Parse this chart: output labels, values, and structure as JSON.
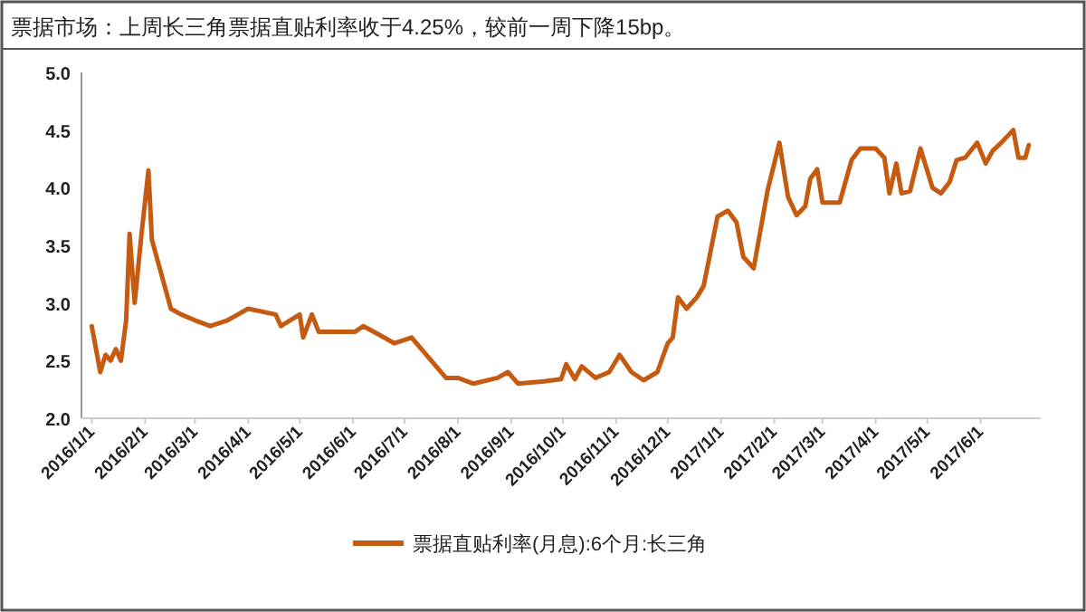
{
  "chart_data": {
    "type": "line",
    "title": "票据市场：上周长三角票据直贴利率收于4.25%，较前一周下降15bp。",
    "xlim": [
      "2015-12-26",
      "2017-07-06"
    ],
    "xticks": [
      {
        "value": "2016-01-01",
        "label": "2016/1/1"
      },
      {
        "value": "2016-02-01",
        "label": "2016/2/1"
      },
      {
        "value": "2016-03-01",
        "label": "2016/3/1"
      },
      {
        "value": "2016-04-01",
        "label": "2016/4/1"
      },
      {
        "value": "2016-05-01",
        "label": "2016/5/1"
      },
      {
        "value": "2016-06-01",
        "label": "2016/6/1"
      },
      {
        "value": "2016-07-01",
        "label": "2016/7/1"
      },
      {
        "value": "2016-08-01",
        "label": "2016/8/1"
      },
      {
        "value": "2016-09-01",
        "label": "2016/9/1"
      },
      {
        "value": "2016-10-01",
        "label": "2016/10/1"
      },
      {
        "value": "2016-11-01",
        "label": "2016/11/1"
      },
      {
        "value": "2016-12-01",
        "label": "2016/12/1"
      },
      {
        "value": "2017-01-01",
        "label": "2017/1/1"
      },
      {
        "value": "2017-02-01",
        "label": "2017/2/1"
      },
      {
        "value": "2017-03-01",
        "label": "2017/3/1"
      },
      {
        "value": "2017-04-01",
        "label": "2017/4/1"
      },
      {
        "value": "2017-05-01",
        "label": "2017/5/1"
      },
      {
        "value": "2017-06-01",
        "label": "2017/6/1"
      }
    ],
    "ylim": [
      2.0,
      5.0
    ],
    "yticks": [
      {
        "value": 2.0,
        "label": "2.0"
      },
      {
        "value": 2.5,
        "label": "2.5"
      },
      {
        "value": 3.0,
        "label": "3.0"
      },
      {
        "value": 3.5,
        "label": "3.5"
      },
      {
        "value": 4.0,
        "label": "4.0"
      },
      {
        "value": 4.5,
        "label": "4.5"
      },
      {
        "value": 5.0,
        "label": "5.0"
      }
    ],
    "grid": false,
    "legend": "bottom",
    "marker": "none",
    "line_style": "solid",
    "series": [
      {
        "name": "票据直贴利率(月息):6个月:长三角",
        "color": "#c55a11",
        "x": [
          "2016-01-01",
          "2016-01-06",
          "2016-01-09",
          "2016-01-12",
          "2016-01-15",
          "2016-01-18",
          "2016-01-21",
          "2016-01-23",
          "2016-01-26",
          "2016-01-30",
          "2016-02-03",
          "2016-02-05",
          "2016-02-16",
          "2016-02-22",
          "2016-03-01",
          "2016-03-10",
          "2016-03-20",
          "2016-04-01",
          "2016-04-17",
          "2016-04-20",
          "2016-05-01",
          "2016-05-03",
          "2016-05-08",
          "2016-05-12",
          "2016-06-02",
          "2016-06-07",
          "2016-06-19",
          "2016-06-25",
          "2016-07-05",
          "2016-07-25",
          "2016-08-01",
          "2016-08-10",
          "2016-08-24",
          "2016-08-30",
          "2016-09-05",
          "2016-09-20",
          "2016-09-30",
          "2016-10-03",
          "2016-10-08",
          "2016-10-12",
          "2016-10-20",
          "2016-10-28",
          "2016-11-03",
          "2016-11-10",
          "2016-11-17",
          "2016-11-25",
          "2016-12-01",
          "2016-12-04",
          "2016-12-07",
          "2016-12-12",
          "2016-12-18",
          "2016-12-22",
          "2016-12-30",
          "2017-01-05",
          "2017-01-10",
          "2017-01-14",
          "2017-01-20",
          "2017-01-28",
          "2017-02-04",
          "2017-02-09",
          "2017-02-14",
          "2017-02-19",
          "2017-02-22",
          "2017-02-26",
          "2017-03-01",
          "2017-03-11",
          "2017-03-18",
          "2017-03-23",
          "2017-04-01",
          "2017-04-06",
          "2017-04-09",
          "2017-04-13",
          "2017-04-16",
          "2017-04-21",
          "2017-04-27",
          "2017-05-04",
          "2017-05-09",
          "2017-05-14",
          "2017-05-18",
          "2017-05-23",
          "2017-05-30",
          "2017-06-04",
          "2017-06-08",
          "2017-06-13",
          "2017-06-20",
          "2017-06-23",
          "2017-06-27",
          "2017-06-29"
        ],
        "values": [
          2.8,
          2.4,
          2.55,
          2.5,
          2.6,
          2.5,
          2.85,
          3.6,
          3.0,
          3.6,
          4.15,
          3.55,
          2.95,
          2.9,
          2.85,
          2.8,
          2.85,
          2.95,
          2.9,
          2.8,
          2.9,
          2.7,
          2.9,
          2.75,
          2.75,
          2.8,
          2.7,
          2.65,
          2.7,
          2.35,
          2.35,
          2.3,
          2.35,
          2.4,
          2.3,
          2.32,
          2.34,
          2.47,
          2.34,
          2.45,
          2.35,
          2.4,
          2.55,
          2.4,
          2.33,
          2.4,
          2.65,
          2.7,
          3.05,
          2.95,
          3.05,
          3.15,
          3.75,
          3.8,
          3.7,
          3.4,
          3.3,
          3.97,
          4.39,
          3.92,
          3.76,
          3.84,
          4.08,
          4.16,
          3.87,
          3.87,
          4.24,
          4.34,
          4.34,
          4.26,
          3.95,
          4.21,
          3.95,
          3.97,
          4.34,
          4.0,
          3.95,
          4.05,
          4.24,
          4.26,
          4.39,
          4.21,
          4.32,
          4.39,
          4.5,
          4.26,
          4.26,
          4.37
        ]
      }
    ]
  }
}
